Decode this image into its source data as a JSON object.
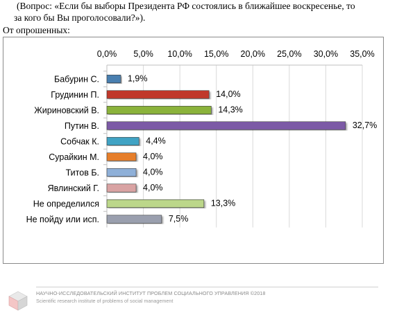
{
  "question_line1": "(Вопрос: «Если бы выборы Президента РФ состоялись в ближайшее воскресенье, то",
  "question_line2": "за кого бы Вы проголосовали?»).",
  "note": "От опрошенных:",
  "footer": {
    "ru": "НАУЧНО-ИССЛЕДОВАТЕЛЬСКИЙ ИНСТИТУТ ПРОБЛЕМ СОЦИАЛЬНОГО УПРАВЛЕНИЯ ©2018",
    "en": "Scientific research institute of problems of social management"
  },
  "chart_data": {
    "type": "bar",
    "orientation": "horizontal",
    "categories": [
      "Бабурин С.",
      "Грудинин П.",
      "Жириновский В.",
      "Путин В.",
      "Собчак К.",
      "Сурайкин М.",
      "Титов Б.",
      "Явлинский Г.",
      "Не определился",
      "Не пойду или исп."
    ],
    "values": [
      1.9,
      14.0,
      14.3,
      32.7,
      4.4,
      4.0,
      4.0,
      4.0,
      13.3,
      7.5
    ],
    "value_labels": [
      "1,9%",
      "14,0%",
      "14,3%",
      "32,7%",
      "4,4%",
      "4,0%",
      "4,0%",
      "4,0%",
      "13,3%",
      "7,5%"
    ],
    "colors": [
      "#4a7fb0",
      "#c0392b",
      "#8bb33a",
      "#7c5aa6",
      "#3fa3c4",
      "#e67e2a",
      "#8fb0d8",
      "#d9a3a3",
      "#bcd78a",
      "#9a9fae"
    ],
    "xlim": [
      0,
      35
    ],
    "x_ticks": [
      "0,0%",
      "5,0%",
      "10,0%",
      "15,0%",
      "20,0%",
      "25,0%",
      "30,0%",
      "35,0%"
    ],
    "axis_position": "top",
    "grid": true,
    "legend": "none"
  }
}
